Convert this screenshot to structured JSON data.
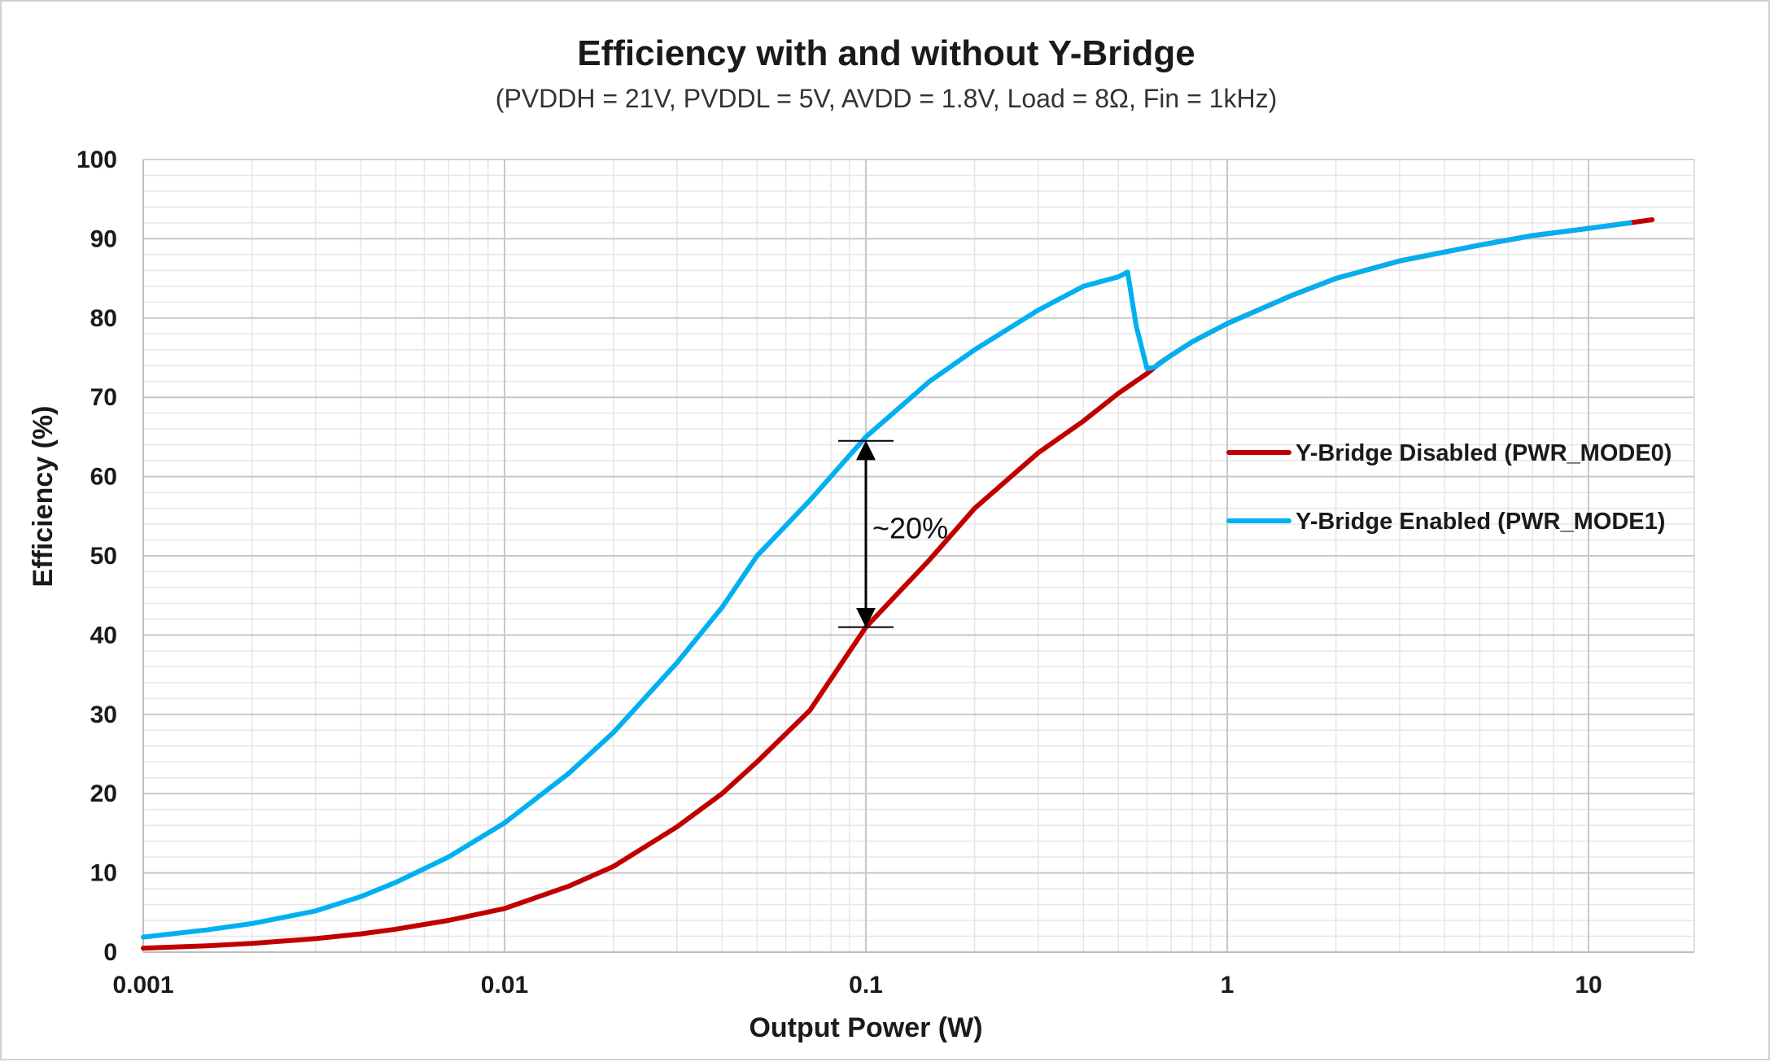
{
  "chart_data": {
    "type": "line",
    "title": "Efficiency with and without Y-Bridge",
    "subtitle": "(PVDDH = 21V, PVDDL = 5V, AVDD = 1.8V, Load = 8Ω, Fin = 1kHz)",
    "xlabel": "Output Power (W)",
    "ylabel": "Efficiency (%)",
    "xscale": "log",
    "xlim": [
      0.001,
      30
    ],
    "ylim": [
      0,
      100
    ],
    "x_ticks": [
      0.001,
      0.01,
      0.1,
      1,
      10
    ],
    "x_tick_labels": [
      "0.001",
      "0.01",
      "0.1",
      "1",
      "10"
    ],
    "y_ticks": [
      0,
      10,
      20,
      30,
      40,
      50,
      60,
      70,
      80,
      90,
      100
    ],
    "y_tick_labels": [
      "0",
      "10",
      "20",
      "30",
      "40",
      "50",
      "60",
      "70",
      "80",
      "90",
      "100"
    ],
    "grid": true,
    "legend_position": "right",
    "series": [
      {
        "name": "Y-Bridge Disabled (PWR_MODE0)",
        "color": "#c00000",
        "points": [
          [
            0.001,
            0.5
          ],
          [
            0.0015,
            0.8
          ],
          [
            0.002,
            1.1
          ],
          [
            0.003,
            1.7
          ],
          [
            0.004,
            2.3
          ],
          [
            0.005,
            2.9
          ],
          [
            0.007,
            4.0
          ],
          [
            0.01,
            5.5
          ],
          [
            0.015,
            8.3
          ],
          [
            0.02,
            10.8
          ],
          [
            0.03,
            15.8
          ],
          [
            0.04,
            20.0
          ],
          [
            0.05,
            24.0
          ],
          [
            0.07,
            30.5
          ],
          [
            0.1,
            41.0
          ],
          [
            0.15,
            49.5
          ],
          [
            0.2,
            56.0
          ],
          [
            0.3,
            63.0
          ],
          [
            0.4,
            67.0
          ],
          [
            0.5,
            70.5
          ],
          [
            0.6,
            73.0
          ],
          [
            0.65,
            74.3
          ],
          [
            0.7,
            75.3
          ],
          [
            0.8,
            77.0
          ],
          [
            1.0,
            79.3
          ],
          [
            1.5,
            82.8
          ],
          [
            2.0,
            85.0
          ],
          [
            3.0,
            87.2
          ],
          [
            5.0,
            89.2
          ],
          [
            7.0,
            90.4
          ],
          [
            10.0,
            91.3
          ],
          [
            13.0,
            92.0
          ],
          [
            15.0,
            92.4
          ]
        ]
      },
      {
        "name": "Y-Bridge Enabled (PWR_MODE1)",
        "color": "#00b0f0",
        "points": [
          [
            0.001,
            1.9
          ],
          [
            0.0015,
            2.8
          ],
          [
            0.002,
            3.6
          ],
          [
            0.003,
            5.2
          ],
          [
            0.004,
            7.0
          ],
          [
            0.005,
            8.8
          ],
          [
            0.007,
            12.0
          ],
          [
            0.01,
            16.3
          ],
          [
            0.015,
            22.5
          ],
          [
            0.02,
            27.7
          ],
          [
            0.03,
            36.5
          ],
          [
            0.04,
            43.5
          ],
          [
            0.05,
            50.0
          ],
          [
            0.07,
            57.0
          ],
          [
            0.1,
            65.0
          ],
          [
            0.15,
            72.0
          ],
          [
            0.2,
            76.0
          ],
          [
            0.3,
            81.0
          ],
          [
            0.4,
            84.0
          ],
          [
            0.5,
            85.2
          ],
          [
            0.53,
            85.8
          ],
          [
            0.56,
            79.0
          ],
          [
            0.6,
            73.6
          ],
          [
            0.63,
            73.8
          ],
          [
            0.7,
            75.3
          ],
          [
            0.8,
            77.0
          ],
          [
            1.0,
            79.3
          ],
          [
            1.5,
            82.8
          ],
          [
            2.0,
            85.0
          ],
          [
            3.0,
            87.2
          ],
          [
            5.0,
            89.2
          ],
          [
            7.0,
            90.4
          ],
          [
            10.0,
            91.3
          ],
          [
            13.0,
            92.0
          ]
        ]
      }
    ],
    "annotation": {
      "label": "~20%",
      "x": 0.1,
      "y_from": 41.0,
      "y_to": 64.5
    }
  }
}
